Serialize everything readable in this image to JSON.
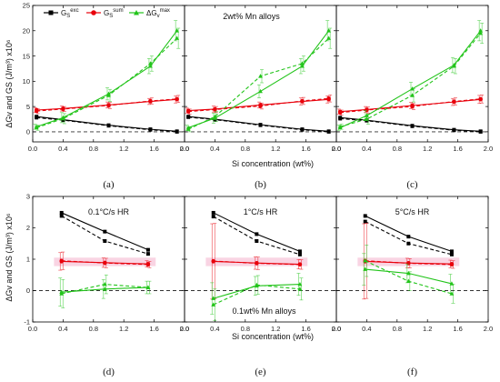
{
  "figure": {
    "row_top_ylabel": "ΔGv and GS (J/m³) x10⁶",
    "row_bottom_ylabel": "ΔGv and GS (J/m³) x10⁶",
    "row_top_xlabel": "Si concentration (wt%)",
    "row_bottom_xlabel": "Si concentration (wt%)"
  },
  "legend": {
    "entries": [
      {
        "label": "GSexc",
        "color": "#000000",
        "marker": "square"
      },
      {
        "label": "GSsum",
        "color": "#e8000b",
        "marker": "circle"
      },
      {
        "label": "ΔGvmax",
        "color": "#22c41a",
        "marker": "triangle"
      }
    ]
  },
  "colors": {
    "black": "#000000",
    "red": "#e8000b",
    "green": "#22c41a",
    "pink_band": "#f7c6da",
    "zero_line": "#333333"
  },
  "chart_data": [
    {
      "type": "line",
      "panel_label": "(a)",
      "annotation": "",
      "xlim": [
        0,
        2.0
      ],
      "ylim": [
        -2,
        25
      ],
      "xticks": [
        0.0,
        0.4,
        0.8,
        1.2,
        1.6,
        2.0
      ],
      "yticks": [
        0,
        5,
        10,
        15,
        20,
        25
      ],
      "xlabel": "",
      "ylabel": "",
      "series": [
        {
          "color": "black",
          "style": "solid",
          "x": [
            0.05,
            0.4,
            1.0,
            1.55,
            1.9
          ],
          "y": [
            3.0,
            2.4,
            1.3,
            0.5,
            0.1
          ]
        },
        {
          "color": "black",
          "style": "dashed",
          "x": [
            0.05,
            0.4,
            1.0,
            1.55,
            1.9
          ],
          "y": [
            2.8,
            2.3,
            1.2,
            0.4,
            0.0
          ]
        },
        {
          "color": "red",
          "style": "solid",
          "x": [
            0.05,
            0.4,
            1.0,
            1.55,
            1.9
          ],
          "y": [
            4.3,
            4.6,
            5.3,
            6.0,
            6.4
          ],
          "err": [
            0.5,
            0.5,
            0.6,
            0.6,
            0.7
          ]
        },
        {
          "color": "red",
          "style": "dashed",
          "x": [
            0.05,
            0.4,
            1.0,
            1.55,
            1.9
          ],
          "y": [
            4.1,
            4.5,
            5.2,
            6.1,
            6.5
          ],
          "err": [
            0.5,
            0.5,
            0.6,
            0.6,
            0.7
          ]
        },
        {
          "color": "green",
          "style": "solid",
          "x": [
            0.05,
            0.4,
            1.0,
            1.55,
            1.9
          ],
          "y": [
            1.0,
            2.8,
            7.5,
            13.0,
            20.0
          ],
          "err": [
            0.5,
            1.0,
            1.2,
            1.5,
            2.0
          ]
        },
        {
          "color": "green",
          "style": "dashed",
          "x": [
            0.05,
            0.4,
            1.0,
            1.55,
            1.9
          ],
          "y": [
            0.8,
            2.6,
            7.2,
            13.5,
            18.5
          ],
          "err": [
            0.5,
            1.0,
            1.2,
            1.5,
            2.0
          ]
        }
      ]
    },
    {
      "type": "line",
      "panel_label": "(b)",
      "annotation": "2wt% Mn alloys",
      "xlim": [
        0,
        2.0
      ],
      "ylim": [
        -2,
        25
      ],
      "xticks": [
        0.0,
        0.4,
        0.8,
        1.2,
        1.6,
        2.0
      ],
      "yticks": [
        0,
        5,
        10,
        15,
        20,
        25
      ],
      "xlabel": "",
      "ylabel": "",
      "series": [
        {
          "color": "black",
          "style": "solid",
          "x": [
            0.05,
            0.4,
            1.0,
            1.55,
            1.9
          ],
          "y": [
            3.0,
            2.5,
            1.4,
            0.5,
            0.1
          ]
        },
        {
          "color": "black",
          "style": "dashed",
          "x": [
            0.05,
            0.4,
            1.0,
            1.55,
            1.9
          ],
          "y": [
            2.9,
            2.4,
            1.3,
            0.4,
            0.0
          ]
        },
        {
          "color": "red",
          "style": "solid",
          "x": [
            0.05,
            0.4,
            1.0,
            1.55,
            1.9
          ],
          "y": [
            4.2,
            4.5,
            5.3,
            6.0,
            6.4
          ],
          "err": [
            0.5,
            0.6,
            0.6,
            0.7,
            0.7
          ]
        },
        {
          "color": "red",
          "style": "dashed",
          "x": [
            0.05,
            0.4,
            1.0,
            1.55,
            1.9
          ],
          "y": [
            4.0,
            4.4,
            5.1,
            6.1,
            6.6
          ],
          "err": [
            0.5,
            0.6,
            0.6,
            0.7,
            0.7
          ]
        },
        {
          "color": "green",
          "style": "solid",
          "x": [
            0.05,
            0.4,
            1.0,
            1.55,
            1.9
          ],
          "y": [
            0.8,
            2.7,
            8.0,
            13.0,
            20.0
          ],
          "err": [
            0.5,
            1.0,
            1.3,
            1.5,
            2.0
          ]
        },
        {
          "color": "green",
          "style": "dashed",
          "x": [
            0.05,
            0.4,
            1.0,
            1.55,
            1.9
          ],
          "y": [
            0.5,
            3.0,
            11.0,
            13.5,
            18.5
          ],
          "err": [
            0.5,
            1.0,
            1.3,
            1.5,
            2.0
          ]
        }
      ]
    },
    {
      "type": "line",
      "panel_label": "(c)",
      "annotation": "",
      "xlim": [
        0,
        2.0
      ],
      "ylim": [
        -2,
        25
      ],
      "xticks": [
        0.0,
        0.4,
        0.8,
        1.2,
        1.6,
        2.0
      ],
      "yticks": [
        0,
        5,
        10,
        15,
        20,
        25
      ],
      "xlabel": "",
      "ylabel": "",
      "series": [
        {
          "color": "black",
          "style": "solid",
          "x": [
            0.05,
            0.4,
            1.0,
            1.55,
            1.9
          ],
          "y": [
            2.8,
            2.3,
            1.2,
            0.4,
            0.1
          ]
        },
        {
          "color": "black",
          "style": "dashed",
          "x": [
            0.05,
            0.4,
            1.0,
            1.55,
            1.9
          ],
          "y": [
            2.6,
            2.2,
            1.1,
            0.3,
            0.0
          ]
        },
        {
          "color": "red",
          "style": "solid",
          "x": [
            0.05,
            0.4,
            1.0,
            1.55,
            1.9
          ],
          "y": [
            4.0,
            4.4,
            5.2,
            5.9,
            6.4
          ],
          "err": [
            0.5,
            0.6,
            0.6,
            0.7,
            0.8
          ]
        },
        {
          "color": "red",
          "style": "dashed",
          "x": [
            0.05,
            0.4,
            1.0,
            1.55,
            1.9
          ],
          "y": [
            3.8,
            4.3,
            5.0,
            6.0,
            6.5
          ],
          "err": [
            0.5,
            0.6,
            0.6,
            0.7,
            0.8
          ]
        },
        {
          "color": "green",
          "style": "solid",
          "x": [
            0.05,
            0.4,
            1.0,
            1.55,
            1.9
          ],
          "y": [
            0.8,
            3.2,
            8.5,
            13.2,
            20.0
          ],
          "err": [
            0.5,
            1.0,
            1.3,
            1.5,
            2.0
          ]
        },
        {
          "color": "green",
          "style": "dashed",
          "x": [
            0.05,
            0.4,
            1.0,
            1.55,
            1.9
          ],
          "y": [
            1.0,
            2.5,
            7.2,
            13.0,
            19.5
          ],
          "err": [
            0.5,
            1.0,
            1.3,
            1.5,
            2.0
          ]
        }
      ]
    },
    {
      "type": "line",
      "panel_label": "(d)",
      "annotation": "0.1°C/s HR",
      "xlim": [
        0,
        2.0
      ],
      "ylim": [
        -1,
        3
      ],
      "xticks": [
        0.0,
        0.4,
        0.8,
        1.2,
        1.6,
        2.0
      ],
      "yticks": [
        -1,
        0,
        1,
        2,
        3
      ],
      "xlabel": "",
      "ylabel": "",
      "band": {
        "y0": 0.78,
        "y1": 1.05
      },
      "series": [
        {
          "color": "black",
          "style": "solid",
          "x": [
            0.38,
            0.95,
            1.52
          ],
          "y": [
            2.48,
            1.88,
            1.3
          ]
        },
        {
          "color": "black",
          "style": "dashed",
          "x": [
            0.38,
            0.95,
            1.52
          ],
          "y": [
            2.38,
            1.58,
            1.17
          ]
        },
        {
          "color": "red",
          "style": "solid",
          "x": [
            0.38,
            0.95,
            1.52
          ],
          "y": [
            0.93,
            0.89,
            0.85
          ],
          "err": [
            0.28,
            0.15,
            0.1
          ]
        },
        {
          "color": "red",
          "style": "dashed",
          "x": [
            0.38,
            0.95,
            1.52
          ],
          "y": [
            0.95,
            0.88,
            0.83
          ],
          "err": [
            0.28,
            0.15,
            0.1
          ]
        },
        {
          "color": "green",
          "style": "solid",
          "x": [
            0.38,
            0.95,
            1.52
          ],
          "y": [
            -0.05,
            0.05,
            0.1
          ],
          "err": [
            0.45,
            0.3,
            0.2
          ]
        },
        {
          "color": "green",
          "style": "dashed",
          "x": [
            0.38,
            0.95,
            1.52
          ],
          "y": [
            -0.1,
            0.2,
            0.1
          ],
          "err": [
            0.45,
            0.3,
            0.2
          ]
        }
      ]
    },
    {
      "type": "line",
      "panel_label": "(e)",
      "annotation": "1°C/s HR",
      "annotation2": "0.1wt% Mn alloys",
      "xlim": [
        0,
        2.0
      ],
      "ylim": [
        -1,
        3
      ],
      "xticks": [
        0.0,
        0.4,
        0.8,
        1.2,
        1.6,
        2.0
      ],
      "yticks": [
        -1,
        0,
        1,
        2,
        3
      ],
      "xlabel": "",
      "ylabel": "",
      "band": {
        "y0": 0.78,
        "y1": 1.05
      },
      "series": [
        {
          "color": "black",
          "style": "solid",
          "x": [
            0.38,
            0.95,
            1.52
          ],
          "y": [
            2.48,
            1.8,
            1.25
          ]
        },
        {
          "color": "black",
          "style": "dashed",
          "x": [
            0.38,
            0.95,
            1.52
          ],
          "y": [
            2.36,
            1.58,
            1.15
          ]
        },
        {
          "color": "red",
          "style": "solid",
          "x": [
            0.38,
            0.95,
            1.52
          ],
          "y": [
            0.93,
            0.88,
            0.84
          ],
          "err": [
            1.2,
            0.2,
            0.15
          ]
        },
        {
          "color": "red",
          "style": "dashed",
          "x": [
            0.38,
            0.95,
            1.52
          ],
          "y": [
            0.94,
            0.87,
            0.83
          ],
          "err": [
            1.2,
            0.2,
            0.15
          ]
        },
        {
          "color": "green",
          "style": "solid",
          "x": [
            0.38,
            0.95,
            1.52
          ],
          "y": [
            -0.25,
            0.15,
            0.2
          ],
          "err": [
            0.5,
            0.3,
            0.35
          ]
        },
        {
          "color": "green",
          "style": "dashed",
          "x": [
            0.38,
            0.95,
            1.52
          ],
          "y": [
            -0.45,
            0.18,
            0.05
          ],
          "err": [
            0.5,
            0.3,
            0.35
          ]
        }
      ]
    },
    {
      "type": "line",
      "panel_label": "(f)",
      "annotation": "5°C/s HR",
      "xlim": [
        0,
        2.0
      ],
      "ylim": [
        -1,
        3
      ],
      "xticks": [
        0.0,
        0.4,
        0.8,
        1.2,
        1.6,
        2.0
      ],
      "yticks": [
        -1,
        0,
        1,
        2,
        3
      ],
      "xlabel": "",
      "ylabel": "",
      "band": {
        "y0": 0.78,
        "y1": 1.05
      },
      "series": [
        {
          "color": "black",
          "style": "solid",
          "x": [
            0.38,
            0.95,
            1.52
          ],
          "y": [
            2.38,
            1.72,
            1.25
          ]
        },
        {
          "color": "black",
          "style": "dashed",
          "x": [
            0.38,
            0.95,
            1.52
          ],
          "y": [
            2.2,
            1.5,
            1.15
          ]
        },
        {
          "color": "red",
          "style": "solid",
          "x": [
            0.38,
            0.95,
            1.52
          ],
          "y": [
            0.93,
            0.88,
            0.85
          ],
          "err": [
            1.2,
            0.15,
            0.12
          ]
        },
        {
          "color": "red",
          "style": "dashed",
          "x": [
            0.38,
            0.95,
            1.52
          ],
          "y": [
            0.95,
            0.87,
            0.83
          ],
          "err": [
            1.2,
            0.15,
            0.12
          ]
        },
        {
          "color": "green",
          "style": "solid",
          "x": [
            0.38,
            0.95,
            1.52
          ],
          "y": [
            0.68,
            0.55,
            0.22
          ],
          "err": [
            0.5,
            0.3,
            0.3
          ]
        },
        {
          "color": "green",
          "style": "dashed",
          "x": [
            0.38,
            0.95,
            1.52
          ],
          "y": [
            0.95,
            0.3,
            -0.1
          ],
          "err": [
            0.5,
            0.3,
            0.3
          ]
        }
      ]
    }
  ]
}
